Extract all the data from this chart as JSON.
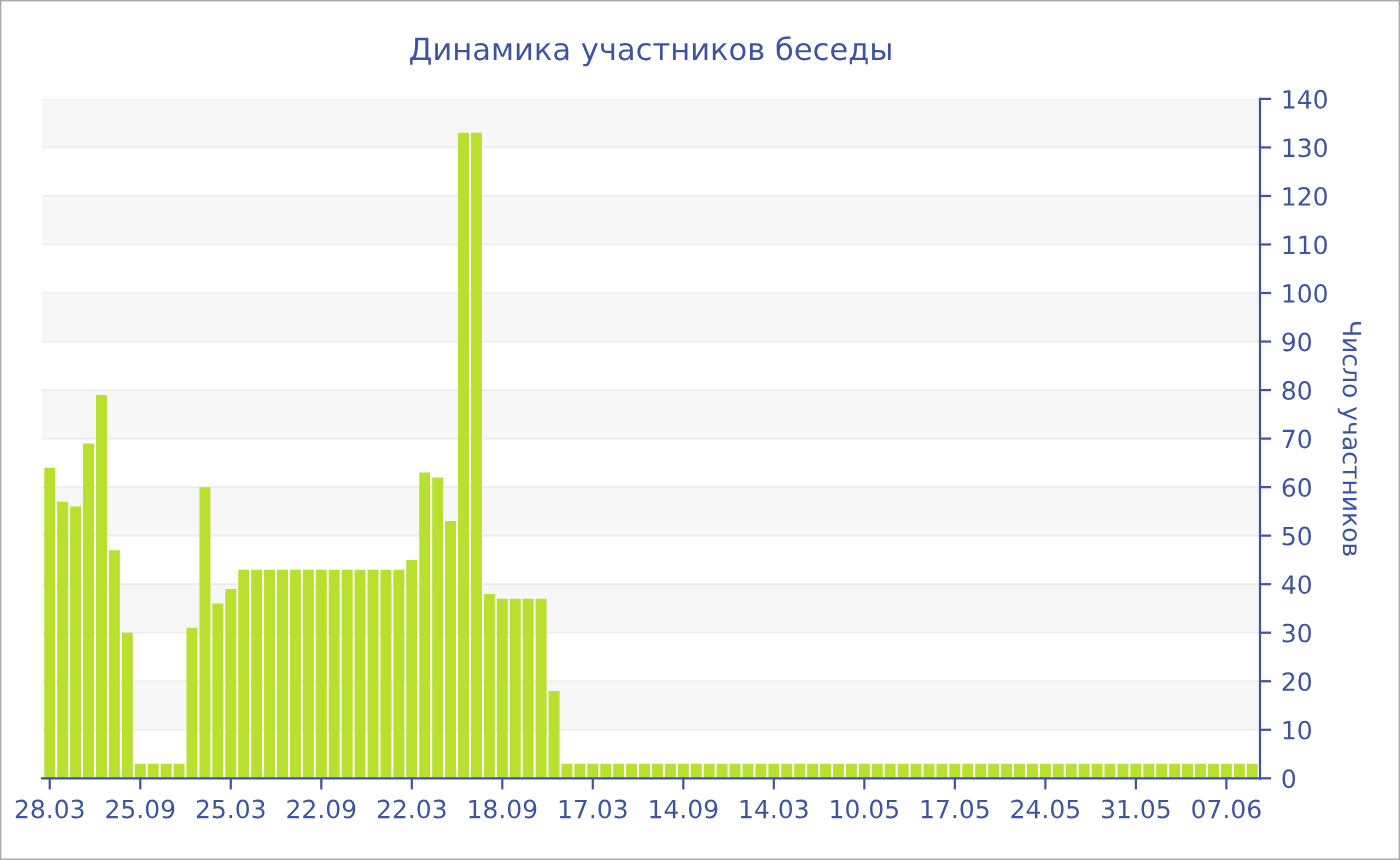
{
  "chart_data": {
    "type": "bar",
    "title": "Динамика участников беседы",
    "ylabel": "Число участников",
    "categories": [
      "28.03",
      null,
      null,
      null,
      null,
      null,
      null,
      "25.09",
      null,
      null,
      null,
      null,
      null,
      null,
      "25.03",
      null,
      null,
      null,
      null,
      null,
      null,
      "22.09",
      null,
      null,
      null,
      null,
      null,
      null,
      "22.03",
      null,
      null,
      null,
      null,
      null,
      null,
      "18.09",
      null,
      null,
      null,
      null,
      null,
      null,
      "17.03",
      null,
      null,
      null,
      null,
      null,
      null,
      "14.09",
      null,
      null,
      null,
      null,
      null,
      null,
      "14.03",
      null,
      null,
      null,
      null,
      null,
      null,
      "10.05",
      null,
      null,
      null,
      null,
      null,
      null,
      "17.05",
      null,
      null,
      null,
      null,
      null,
      null,
      "24.05",
      null,
      null,
      null,
      null,
      null,
      null,
      "31.05",
      null,
      null,
      null,
      null,
      null,
      null,
      "07.06",
      null,
      null
    ],
    "series": [
      {
        "color": "#b8e02e",
        "values": [
          64,
          57,
          56,
          69,
          79,
          47,
          30,
          3,
          3,
          3,
          3,
          31,
          60,
          36,
          39,
          43,
          43,
          43,
          43,
          43,
          43,
          43,
          43,
          43,
          43,
          43,
          43,
          43,
          45,
          63,
          62,
          53,
          133,
          133,
          38,
          37,
          37,
          37,
          37,
          18,
          3,
          3,
          3,
          3,
          3,
          3,
          3,
          3,
          3,
          3,
          3,
          3,
          3,
          3,
          3,
          3,
          3,
          3,
          3,
          3,
          3,
          3,
          3,
          3,
          3,
          3,
          3,
          3,
          3,
          3,
          3,
          3,
          3,
          3,
          3,
          3,
          3,
          3,
          3,
          3,
          3,
          3,
          3,
          3,
          3,
          3,
          3,
          3,
          3,
          3,
          3,
          3,
          3,
          3
        ]
      }
    ],
    "ylim": [
      0,
      140
    ],
    "yticks": [
      0,
      10,
      20,
      30,
      40,
      50,
      60,
      70,
      80,
      90,
      100,
      110,
      120,
      130,
      140
    ],
    "grid": "y",
    "legend": false
  }
}
